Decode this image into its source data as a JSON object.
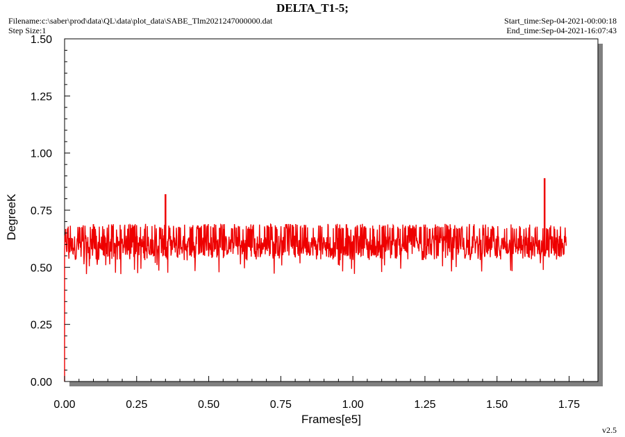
{
  "header": {
    "title": "DELTA_T1-5;",
    "filename": "Filename:c:\\saber\\prod\\data\\QL\\data\\plot_data\\SABE_Tlm2021247000000.dat",
    "step_size": "Step Size:1",
    "start_time": "Start_time:Sep-04-2021-00:00:18",
    "end_time": "End_time:Sep-04-2021-16:07:43"
  },
  "version": "v2.5",
  "colors": {
    "series": "#ee0000",
    "shadow": "#808080",
    "axis": "#000000",
    "background": "#ffffff"
  },
  "chart_data": {
    "type": "line",
    "title": "DELTA_T1-5;",
    "xlabel": "Frames[e5]",
    "ylabel": "DegreeK",
    "xlim": [
      0.0,
      1.85
    ],
    "ylim": [
      0.0,
      1.5
    ],
    "x_ticks": [
      "0.00",
      "0.25",
      "0.50",
      "0.75",
      "1.00",
      "1.25",
      "1.50",
      "1.75"
    ],
    "y_ticks": [
      "0.00",
      "0.25",
      "0.50",
      "0.75",
      "1.00",
      "1.25",
      "1.50"
    ],
    "grid": false,
    "legend": "none",
    "series": [
      {
        "x_start": 0.0,
        "x_end": 1.74,
        "typical_min": 0.53,
        "typical_max": 0.69,
        "baseline_low": 0.55,
        "baseline_high": 0.64,
        "occasional_min": 0.47,
        "start_value": 0.0,
        "spikes": [
          {
            "x": 0.35,
            "y": 0.82
          },
          {
            "x": 1.665,
            "y": 0.89
          }
        ]
      }
    ]
  }
}
